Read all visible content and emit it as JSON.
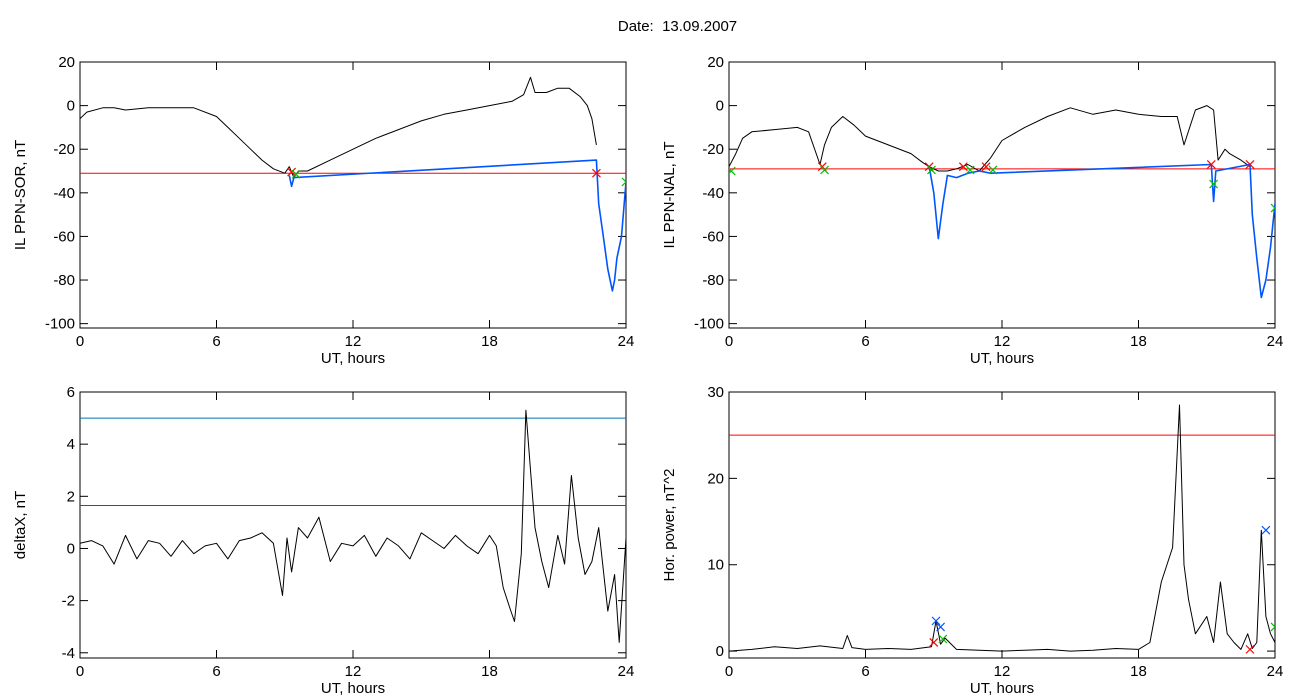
{
  "page": {
    "title_label": "Date:",
    "title_date": "13.09.2007"
  },
  "chart_data": [
    {
      "id": "p1",
      "type": "line",
      "ylabel": "IL PPN-SOR, nT",
      "xlabel": "UT, hours",
      "xlim": [
        0,
        24
      ],
      "ylim": [
        -102,
        20
      ],
      "xticks": [
        0,
        6,
        12,
        18,
        24
      ],
      "yticks": [
        20,
        0,
        -20,
        -40,
        -60,
        -80,
        -100
      ],
      "hlines": [
        {
          "y": -31,
          "color": "#ff0000"
        }
      ],
      "series": [
        {
          "color": "#000000",
          "x": [
            0,
            0.3,
            1,
            1.5,
            2,
            3,
            4,
            5,
            6,
            6.5,
            7,
            7.5,
            8,
            8.5,
            9,
            9.2,
            9.4,
            9.6,
            10,
            11,
            12,
            13,
            14,
            15,
            16,
            17,
            18,
            19,
            19.5,
            19.8,
            20,
            20.5,
            21,
            21.5,
            22,
            22.3,
            22.5,
            22.7
          ],
          "y": [
            -6,
            -3,
            -1,
            -1,
            -2,
            -1,
            -1,
            -1,
            -5,
            -10,
            -15,
            -20,
            -25,
            -29,
            -31,
            -28,
            -33,
            -30,
            -30,
            -25,
            -20,
            -15,
            -11,
            -7,
            -4,
            -2,
            0,
            2,
            5,
            13,
            6,
            6,
            8,
            8,
            4,
            0,
            -6,
            -18
          ]
        },
        {
          "color": "#0055ff",
          "x": [
            9.2,
            9.3,
            9.4,
            22.7,
            22.8,
            23,
            23.2,
            23.4,
            23.5,
            23.6,
            23.8,
            24
          ],
          "y": [
            -32,
            -37,
            -33,
            -25,
            -45,
            -60,
            -75,
            -85,
            -80,
            -70,
            -60,
            -35
          ]
        }
      ],
      "markers": [
        {
          "x": 9.3,
          "y": -30.5,
          "color": "#ff0000"
        },
        {
          "x": 9.5,
          "y": -31.5,
          "color": "#00c000"
        },
        {
          "x": 22.7,
          "y": -31,
          "color": "#ff0000"
        },
        {
          "x": 24,
          "y": -35,
          "color": "#00c000"
        }
      ]
    },
    {
      "id": "p2",
      "type": "line",
      "ylabel": "IL PPN-NAL, nT",
      "xlabel": "UT, hours",
      "xlim": [
        0,
        24
      ],
      "ylim": [
        -102,
        20
      ],
      "xticks": [
        0,
        6,
        12,
        18,
        24
      ],
      "yticks": [
        20,
        0,
        -20,
        -40,
        -60,
        -80,
        -100
      ],
      "hlines": [
        {
          "y": -29,
          "color": "#ff0000"
        }
      ],
      "series": [
        {
          "color": "#000000",
          "x": [
            0,
            0.3,
            0.6,
            1,
            2,
            3,
            3.5,
            4,
            4.2,
            4.5,
            5,
            5.5,
            6,
            7,
            8,
            8.5,
            8.8,
            9.2,
            9.6,
            10,
            10.5,
            11,
            11.5,
            12,
            13,
            14,
            15,
            16,
            17,
            18,
            19,
            19.7,
            20,
            20.5,
            21,
            21.3,
            21.5,
            21.8,
            22,
            22.5,
            22.9
          ],
          "y": [
            -28,
            -22,
            -15,
            -12,
            -11,
            -10,
            -12,
            -27,
            -18,
            -10,
            -5,
            -9,
            -14,
            -18,
            -22,
            -26,
            -28,
            -30,
            -30,
            -29,
            -27,
            -30,
            -24,
            -16,
            -10,
            -5,
            -1,
            -4,
            -2,
            -4,
            -5,
            -5,
            -18,
            -2,
            0,
            -2,
            -25,
            -20,
            -22,
            -25,
            -28
          ]
        },
        {
          "color": "#0055ff",
          "x": [
            8.8,
            9,
            9.2,
            9.4,
            9.6,
            10,
            10.5,
            11,
            11.5,
            21.2,
            21.3,
            21.4,
            22.9,
            23,
            23.2,
            23.4,
            23.6,
            23.8,
            24
          ],
          "y": [
            -28,
            -40,
            -61,
            -45,
            -32,
            -33,
            -31,
            -30,
            -31,
            -27,
            -44,
            -30,
            -27,
            -50,
            -70,
            -88,
            -80,
            -65,
            -45
          ]
        }
      ],
      "markers": [
        {
          "x": 0.1,
          "y": -30,
          "color": "#00c000"
        },
        {
          "x": 4.1,
          "y": -28,
          "color": "#ff0000"
        },
        {
          "x": 4.2,
          "y": -29.5,
          "color": "#00c000"
        },
        {
          "x": 8.8,
          "y": -28,
          "color": "#ff0000"
        },
        {
          "x": 8.9,
          "y": -29.5,
          "color": "#00c000"
        },
        {
          "x": 10.3,
          "y": -28,
          "color": "#ff0000"
        },
        {
          "x": 10.6,
          "y": -29.5,
          "color": "#00c000"
        },
        {
          "x": 11.3,
          "y": -28,
          "color": "#ff0000"
        },
        {
          "x": 11.6,
          "y": -29.5,
          "color": "#00c000"
        },
        {
          "x": 21.2,
          "y": -27,
          "color": "#ff0000"
        },
        {
          "x": 21.3,
          "y": -36,
          "color": "#00c000"
        },
        {
          "x": 22.9,
          "y": -27,
          "color": "#ff0000"
        },
        {
          "x": 24,
          "y": -47,
          "color": "#00c000"
        }
      ]
    },
    {
      "id": "p3",
      "type": "line",
      "ylabel": "deltaX, nT",
      "xlabel": "UT, hours",
      "xlim": [
        0,
        24
      ],
      "ylim": [
        -4.2,
        6
      ],
      "xticks": [
        0,
        6,
        12,
        18,
        24
      ],
      "yticks": [
        6,
        4,
        2,
        0,
        -2,
        -4
      ],
      "hlines": [
        {
          "y": 5,
          "color": "#0077aa"
        },
        {
          "y": 1.65,
          "color": "#ff0000"
        }
      ],
      "series": [
        {
          "color": "#000000",
          "x": [
            0,
            0.5,
            1,
            1.5,
            2,
            2.5,
            3,
            3.5,
            4,
            4.5,
            5,
            5.5,
            6,
            6.5,
            7,
            7.5,
            8,
            8.5,
            8.9,
            9.1,
            9.3,
            9.6,
            10,
            10.5,
            11,
            11.5,
            12,
            12.5,
            13,
            13.5,
            14,
            14.5,
            15,
            15.5,
            16,
            16.5,
            17,
            17.5,
            18,
            18.3,
            18.6,
            18.9,
            19.1,
            19.4,
            19.6,
            19.8,
            20,
            20.3,
            20.6,
            21,
            21.3,
            21.6,
            21.9,
            22.2,
            22.5,
            22.8,
            23.2,
            23.5,
            23.7,
            24
          ],
          "y": [
            0.2,
            0.3,
            0.1,
            -0.6,
            0.5,
            -0.4,
            0.3,
            0.2,
            -0.3,
            0.3,
            -0.2,
            0.1,
            0.2,
            -0.4,
            0.3,
            0.4,
            0.6,
            0.2,
            -1.8,
            0.4,
            -0.9,
            0.8,
            0.4,
            1.2,
            -0.5,
            0.2,
            0.1,
            0.5,
            -0.3,
            0.4,
            0.1,
            -0.4,
            0.6,
            0.3,
            0,
            0.5,
            0.1,
            -0.2,
            0.5,
            0.1,
            -1.5,
            -2.3,
            -2.8,
            -0.2,
            5.3,
            3,
            0.8,
            -0.5,
            -1.5,
            0.5,
            -0.6,
            2.8,
            0.4,
            -1,
            -0.5,
            0.8,
            -2.4,
            -1,
            -3.6,
            0.4
          ]
        }
      ],
      "markers": []
    },
    {
      "id": "p4",
      "type": "line",
      "ylabel": "Hor. power, nT^2",
      "xlabel": "UT, hours",
      "xlim": [
        0,
        24
      ],
      "ylim": [
        -0.8,
        30
      ],
      "xticks": [
        0,
        6,
        12,
        18,
        24
      ],
      "yticks": [
        30,
        20,
        10,
        0
      ],
      "hlines": [
        {
          "y": 25,
          "color": "#ff0000"
        }
      ],
      "series": [
        {
          "color": "#000000",
          "x": [
            0,
            1,
            2,
            3,
            4,
            5,
            5.2,
            5.4,
            6,
            7,
            8,
            8.9,
            9.1,
            9.3,
            9.5,
            10,
            11,
            12,
            13,
            14,
            15,
            16,
            17,
            18,
            18.5,
            19,
            19.5,
            19.8,
            20,
            20.2,
            20.5,
            21,
            21.3,
            21.6,
            21.9,
            22.2,
            22.5,
            22.8,
            23,
            23.2,
            23.4,
            23.6,
            23.8,
            24
          ],
          "y": [
            0,
            0.2,
            0.5,
            0.3,
            0.6,
            0.3,
            1.8,
            0.4,
            0.2,
            0.3,
            0.2,
            0.5,
            3.5,
            0.8,
            1.5,
            0.2,
            0.1,
            0,
            0.1,
            0.2,
            0,
            0.1,
            0.3,
            0.2,
            1,
            8,
            12,
            28.5,
            10,
            6,
            2,
            4,
            1,
            8,
            2,
            1,
            0.2,
            2,
            0.3,
            1,
            14,
            4,
            2,
            1
          ]
        }
      ],
      "markers": [
        {
          "x": 9.0,
          "y": 1.0,
          "color": "#ff0000"
        },
        {
          "x": 9.1,
          "y": 3.5,
          "color": "#0055ff"
        },
        {
          "x": 9.3,
          "y": 2.8,
          "color": "#0055ff"
        },
        {
          "x": 9.4,
          "y": 1.4,
          "color": "#00c000"
        },
        {
          "x": 22.9,
          "y": 0.2,
          "color": "#ff0000"
        },
        {
          "x": 23.6,
          "y": 14,
          "color": "#0055ff"
        },
        {
          "x": 24,
          "y": 2.8,
          "color": "#00c000"
        }
      ]
    }
  ]
}
